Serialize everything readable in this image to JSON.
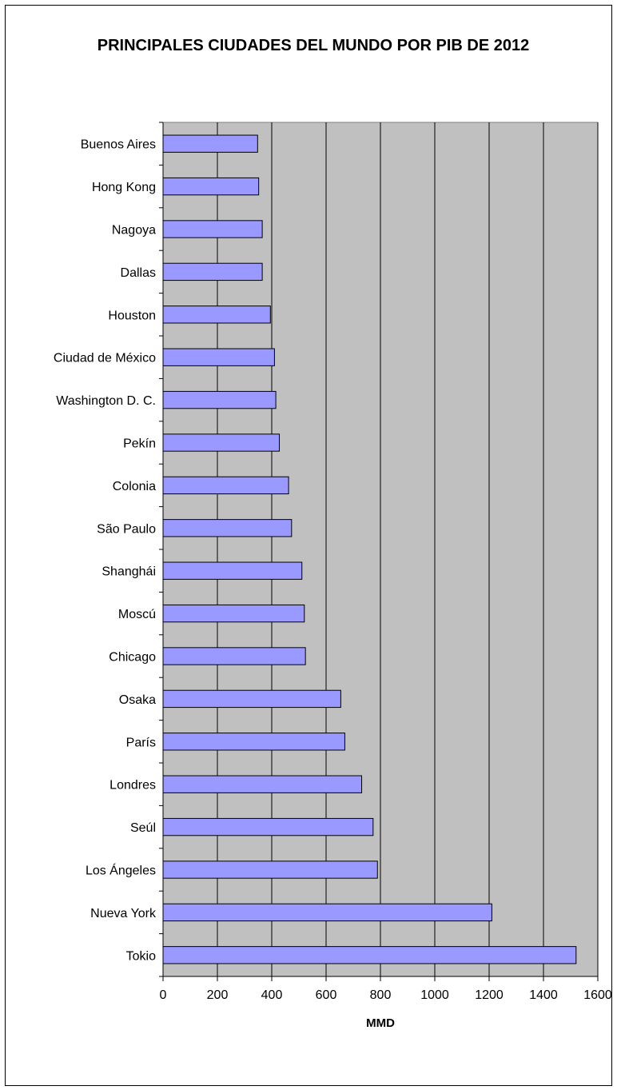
{
  "chart_data": {
    "type": "bar",
    "orientation": "horizontal",
    "title": "PRINCIPALES CIUDADES DEL MUNDO POR PIB DE 2012",
    "xlabel": "MMD",
    "ylabel": "",
    "xlim": [
      0,
      1600
    ],
    "xticks": [
      0,
      200,
      400,
      600,
      800,
      1000,
      1200,
      1400,
      1600
    ],
    "grid": "vertical",
    "legend": "none",
    "categories": [
      "Buenos Aires",
      "Hong Kong",
      "Nagoya",
      "Dallas",
      "Houston",
      "Ciudad de México",
      "Washington D. C.",
      "Pekín",
      "Colonia",
      "São Paulo",
      "Shanghái",
      "Moscú",
      "Chicago",
      "Osaka",
      "París",
      "Londres",
      "Seúl",
      "Los Ángeles",
      "Nueva York",
      "Tokio"
    ],
    "values": [
      348,
      352,
      365,
      365,
      395,
      410,
      415,
      428,
      462,
      473,
      511,
      520,
      524,
      654,
      669,
      731,
      773,
      789,
      1210,
      1520
    ],
    "colors": {
      "bar_fill": "#9999ff",
      "bar_stroke": "#000000",
      "plot_background": "#c0c0c0",
      "gridline": "#000000"
    }
  }
}
